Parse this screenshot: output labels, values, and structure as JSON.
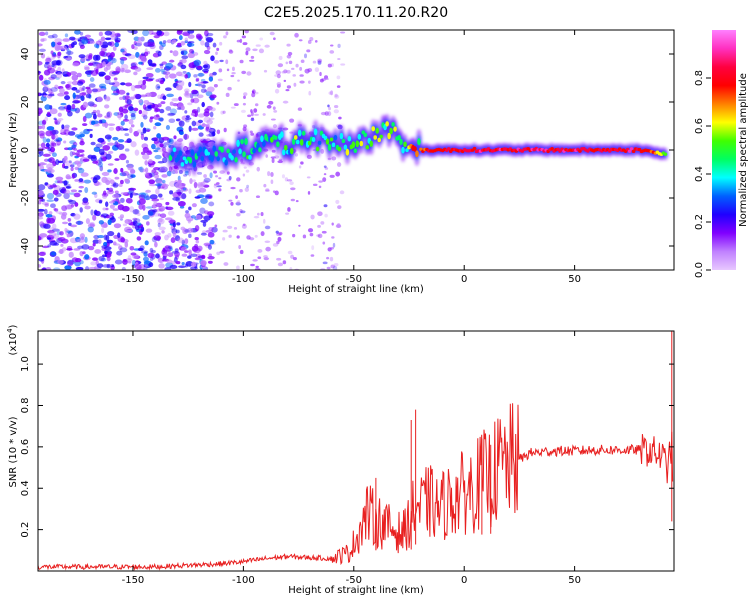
{
  "title": "C2E5.2025.170.11.20.R20",
  "chart_data": [
    {
      "type": "heatmap",
      "xlabel": "Height of straight line (km)",
      "ylabel": "Frequency (Hz)",
      "xlim": [
        -193,
        95
      ],
      "ylim": [
        -50,
        50
      ],
      "x_ticks": [
        "-150",
        "-100",
        "-50",
        "0",
        "50"
      ],
      "x_tick_values": [
        -150,
        -100,
        -50,
        0,
        50
      ],
      "y_ticks": [
        "-40",
        "-20",
        "0",
        "20",
        "40"
      ],
      "y_tick_values": [
        -40,
        -20,
        0,
        20,
        40
      ],
      "colorbar": {
        "label": "Normalized spectral amplitude",
        "range": [
          0,
          1
        ],
        "ticks": [
          "0.0",
          "0.2",
          "0.4",
          "0.6",
          "0.8"
        ],
        "tick_values": [
          0.0,
          0.2,
          0.4,
          0.6,
          0.8
        ],
        "colors": [
          "#e8c8ff",
          "#c080ff",
          "#8000ff",
          "#2000ff",
          "#0060ff",
          "#00ffff",
          "#00ff60",
          "#40ff00",
          "#ffff00",
          "#ff8000",
          "#ff0000",
          "#ff0040",
          "#ff30c0",
          "#ff80ff"
        ]
      },
      "ridge": [
        {
          "x": -133,
          "y": -3,
          "amp": 0.45
        },
        {
          "x": -120,
          "y": -3,
          "amp": 0.45
        },
        {
          "x": -110,
          "y": -2,
          "amp": 0.5
        },
        {
          "x": -100,
          "y": 0,
          "amp": 0.5
        },
        {
          "x": -90,
          "y": 2,
          "amp": 0.5
        },
        {
          "x": -80,
          "y": 3,
          "amp": 0.55
        },
        {
          "x": -70,
          "y": 4,
          "amp": 0.55
        },
        {
          "x": -60,
          "y": 3,
          "amp": 0.55
        },
        {
          "x": -50,
          "y": 3,
          "amp": 0.55
        },
        {
          "x": -40,
          "y": 6,
          "amp": 0.6
        },
        {
          "x": -33,
          "y": 9,
          "amp": 0.6
        },
        {
          "x": -28,
          "y": 2,
          "amp": 0.6
        },
        {
          "x": -20,
          "y": 0,
          "amp": 0.8
        },
        {
          "x": 0,
          "y": 0,
          "amp": 0.9
        },
        {
          "x": 20,
          "y": 0,
          "amp": 0.9
        },
        {
          "x": 50,
          "y": 0,
          "amp": 0.9
        },
        {
          "x": 80,
          "y": 0,
          "amp": 0.9
        },
        {
          "x": 92,
          "y": -2,
          "amp": 0.6
        }
      ]
    },
    {
      "type": "line",
      "xlabel": "Height of straight line (km)",
      "ylabel": "SNR (10 * v/v)",
      "yscale_label": "(x10",
      "yscale_exp": "4",
      "yscale_close": ")",
      "xlim": [
        -193,
        95
      ],
      "ylim": [
        0,
        1.16
      ],
      "x_ticks": [
        "-150",
        "-100",
        "-50",
        "0",
        "50"
      ],
      "x_tick_values": [
        -150,
        -100,
        -50,
        0,
        50
      ],
      "y_ticks": [
        "0.2",
        "0.4",
        "0.6",
        "0.8",
        "1.0"
      ],
      "y_tick_values": [
        0.2,
        0.4,
        0.6,
        0.8,
        1.0
      ],
      "color": "#e82020",
      "series": [
        {
          "x": [
            -193,
            -180,
            -160,
            -140,
            -130,
            -120,
            -110,
            -100,
            -90,
            -80,
            -70,
            -60,
            -52,
            -48,
            -44,
            -40,
            -36,
            -32,
            -28,
            -24,
            -22,
            -20,
            -16,
            -12,
            -8,
            -4,
            0,
            4,
            8,
            12,
            16,
            20,
            25,
            30,
            40,
            50,
            60,
            70,
            80,
            85,
            88,
            90,
            92,
            94,
            95
          ],
          "y": [
            0.02,
            0.02,
            0.02,
            0.02,
            0.025,
            0.03,
            0.035,
            0.045,
            0.06,
            0.07,
            0.065,
            0.06,
            0.09,
            0.18,
            0.28,
            0.25,
            0.22,
            0.2,
            0.18,
            0.26,
            0.32,
            0.3,
            0.34,
            0.3,
            0.33,
            0.36,
            0.38,
            0.4,
            0.44,
            0.45,
            0.5,
            0.52,
            0.54,
            0.57,
            0.58,
            0.58,
            0.585,
            0.585,
            0.585,
            0.58,
            0.56,
            0.55,
            0.5,
            0.6,
            0.3
          ]
        }
      ],
      "spikes": [
        {
          "x": -22,
          "y": 0.78
        },
        {
          "x": -24,
          "y": 0.73
        },
        {
          "x": -40,
          "y": 0.45
        },
        {
          "x": 8,
          "y": 0.64
        },
        {
          "x": 12,
          "y": 0.61
        },
        {
          "x": 94,
          "y": 1.16
        }
      ]
    }
  ]
}
